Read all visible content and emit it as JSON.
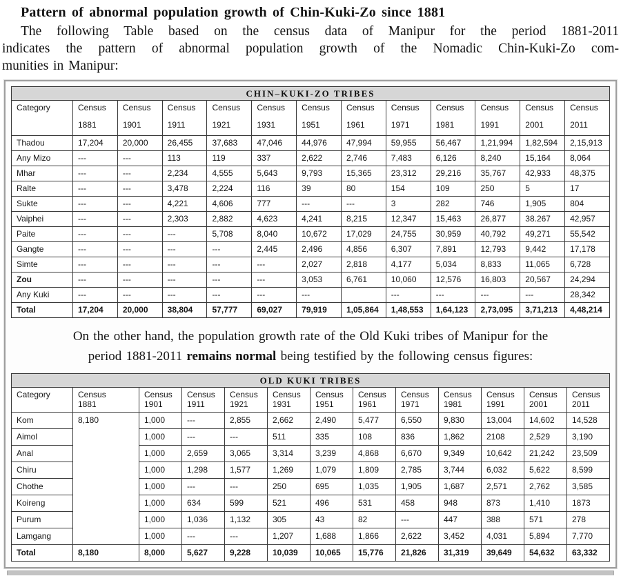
{
  "intro": {
    "title": "Pattern of abnormal population growth of Chin-Kuki-Zo since 1881",
    "line1": "The following Table based on the census data of Manipur for the period 1881-2011",
    "line2": "indicates the pattern of abnormal population growth of the Nomadic Chin-Kuki-Zo com-",
    "line3": "munities in Manipur:"
  },
  "middle": {
    "line1": "On the other hand, the population growth rate of the Old Kuki tribes of Manipur for the",
    "line2_pre": "period 1881-2011 ",
    "line2_bold": "remains normal",
    "line2_post": " being testified by the following census figures:"
  },
  "table1": {
    "title": "CHIN–KUKI-ZO TRIBES",
    "census_word": "Census",
    "category_header": "Category",
    "years": [
      "1881",
      "1901",
      "1911",
      "1921",
      "1931",
      "1951",
      "1961",
      "1971",
      "1981",
      "1991",
      "2001",
      "2011"
    ],
    "rows": [
      {
        "label": "Thadou",
        "values": [
          "17,204",
          "20,000",
          "26,455",
          "37,683",
          "47,046",
          "44,976",
          "47,994",
          "59,955",
          "56,467",
          "1,21,994",
          "1,82,594",
          "2,15,913"
        ]
      },
      {
        "label": "Any Mizo",
        "values": [
          "---",
          "---",
          "113",
          "119",
          "337",
          "2,622",
          "2,746",
          "7,483",
          "6,126",
          "8,240",
          "15,164",
          "8,064"
        ]
      },
      {
        "label": "Mhar",
        "values": [
          "---",
          "---",
          "2,234",
          "4,555",
          "5,643",
          "9,793",
          "15,365",
          "23,312",
          "29,216",
          "35,767",
          "42,933",
          "48,375"
        ]
      },
      {
        "label": "Ralte",
        "values": [
          "---",
          "---",
          "3,478",
          "2,224",
          "116",
          "39",
          "80",
          "154",
          "109",
          "250",
          "5",
          "17"
        ]
      },
      {
        "label": "Sukte",
        "values": [
          "---",
          "---",
          "4,221",
          "4,606",
          "777",
          "---",
          "---",
          "3",
          "282",
          "746",
          "1,905",
          "804"
        ]
      },
      {
        "label": "Vaiphei",
        "values": [
          "---",
          "---",
          "2,303",
          "2,882",
          "4,623",
          "4,241",
          "8,215",
          "12,347",
          "15,463",
          "26,877",
          "38.267",
          "42,957"
        ]
      },
      {
        "label": "Paite",
        "values": [
          "---",
          "---",
          "---",
          "5,708",
          "8,040",
          "10,672",
          "17,029",
          "24,755",
          "30,959",
          "40,792",
          "49,271",
          "55,542"
        ]
      },
      {
        "label": "Gangte",
        "values": [
          "---",
          "---",
          "---",
          "---",
          "2,445",
          "2,496",
          "4,856",
          "6,307",
          "7,891",
          "12,793",
          "9,442",
          "17,178"
        ]
      },
      {
        "label": "Simte",
        "values": [
          "---",
          "---",
          "---",
          "---",
          "---",
          "2,027",
          "2,818",
          "4,177",
          "5,034",
          "8,833",
          "11,065",
          "6,728"
        ]
      },
      {
        "label": "Zou",
        "bold_label": true,
        "values": [
          "---",
          "---",
          "---",
          "---",
          "---",
          "3,053",
          "6,761",
          "10,060",
          "12,576",
          "16,803",
          "20,567",
          "24,294"
        ]
      },
      {
        "label": "Any Kuki",
        "values": [
          "---",
          "---",
          "---",
          "---",
          "---",
          "---",
          "",
          "---",
          "---",
          "---",
          "---",
          "28,342"
        ]
      },
      {
        "label": "Total",
        "total": true,
        "values": [
          "17,204",
          "20,000",
          "38,804",
          "57,777",
          "69,027",
          "79,919",
          "1,05,864",
          "1,48,553",
          "1,64,123",
          "2,73,095",
          "3,71,213",
          "4,48,214"
        ]
      }
    ]
  },
  "table2": {
    "title": "OLD KUKI TRIBES",
    "census_word": "Census",
    "category_header": "Category",
    "years": [
      "1881",
      "1901",
      "1911",
      "1921",
      "1931",
      "1951",
      "1961",
      "1971",
      "1981",
      "1991",
      "2001",
      "2011"
    ],
    "rows": [
      {
        "label": "Kom",
        "merged": "8,180",
        "values": [
          "1,000",
          "---",
          "2,855",
          "2,662",
          "2,490",
          "5,477",
          "6,550",
          "9,830",
          "13,004",
          "14,602",
          "14,528"
        ]
      },
      {
        "label": "Aimol",
        "values": [
          "1,000",
          "---",
          "---",
          "511",
          "335",
          "108",
          "836",
          "1,862",
          "2108",
          "2,529",
          "3,190"
        ]
      },
      {
        "label": "Anal",
        "values": [
          "1,000",
          "2,659",
          "3,065",
          "3,314",
          "3,239",
          "4,868",
          "6,670",
          "9,349",
          "10,642",
          "21,242",
          "23,509"
        ]
      },
      {
        "label": "Chiru",
        "values": [
          "1,000",
          "1,298",
          "1,577",
          "1,269",
          "1,079",
          "1,809",
          "2,785",
          "3,744",
          "6,032",
          "5,622",
          "8,599"
        ]
      },
      {
        "label": "Chothe",
        "values": [
          "1,000",
          "---",
          "---",
          "250",
          "695",
          "1,035",
          "1,905",
          "1,687",
          "2,571",
          "2,762",
          "3,585"
        ]
      },
      {
        "label": "Koireng",
        "values": [
          "1,000",
          "634",
          "599",
          "521",
          "496",
          "531",
          "458",
          "948",
          "873",
          "1,410",
          "1873"
        ]
      },
      {
        "label": "Purum",
        "values": [
          "1,000",
          "1,036",
          "1,132",
          "305",
          "43",
          "82",
          "---",
          "447",
          "388",
          "571",
          "278"
        ]
      },
      {
        "label": "Lamgang",
        "values": [
          "1,000",
          "---",
          "---",
          "1,207",
          "1,688",
          "1,866",
          "2,622",
          "3,452",
          "4,031",
          "5,894",
          "7,770"
        ]
      },
      {
        "label": "Total",
        "total": true,
        "values": [
          "8,180",
          "8,000",
          "5,627",
          "9,228",
          "10,039",
          "10,065",
          "15,776",
          "21,826",
          "31,319",
          "39,649",
          "54,632",
          "63,332"
        ]
      }
    ]
  }
}
